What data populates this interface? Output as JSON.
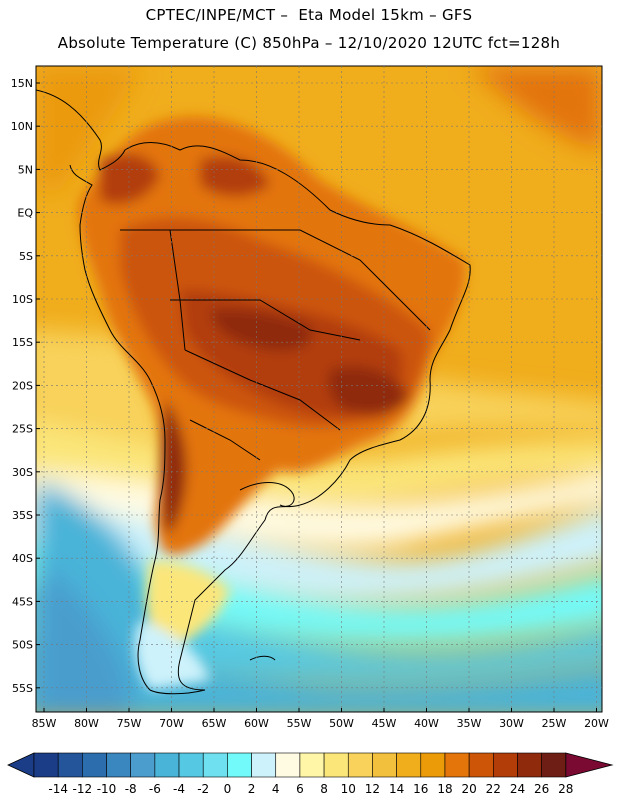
{
  "header": {
    "line1": "CPTEC/INPE/MCT –  Eta Model 15km – GFS",
    "line2": "Absolute Temperature (C) 850hPa – 12/10/2020 12UTC fct=128h"
  },
  "map": {
    "lat_labels": [
      "15N",
      "10N",
      "5N",
      "EQ",
      "5S",
      "10S",
      "15S",
      "20S",
      "25S",
      "30S",
      "35S",
      "40S",
      "45S",
      "50S",
      "55S"
    ],
    "lon_labels": [
      "85W",
      "80W",
      "75W",
      "70W",
      "65W",
      "60W",
      "55W",
      "50W",
      "45W",
      "40W",
      "35W",
      "30W",
      "25W",
      "20W"
    ],
    "gridlines": "dotted"
  },
  "colorbar": {
    "levels": [
      "-14",
      "-12",
      "-10",
      "-8",
      "-6",
      "-4",
      "-2",
      "0",
      "2",
      "4",
      "6",
      "8",
      "10",
      "12",
      "14",
      "16",
      "18",
      "20",
      "22",
      "24",
      "26",
      "28"
    ],
    "colors": [
      "#1b3d87",
      "#24549a",
      "#2c6ead",
      "#3a86bf",
      "#4a9dcd",
      "#49b3d8",
      "#55c9e4",
      "#6ee0f0",
      "#72fafa",
      "#cdf2fb",
      "#fffbe3",
      "#fff6a8",
      "#fbe67a",
      "#f8d25a",
      "#f3c03e",
      "#f0ad1c",
      "#eb9a08",
      "#e3750a",
      "#cc5508",
      "#b23d09",
      "#8f2a0c",
      "#6e1e14",
      "#7a0a32"
    ]
  }
}
